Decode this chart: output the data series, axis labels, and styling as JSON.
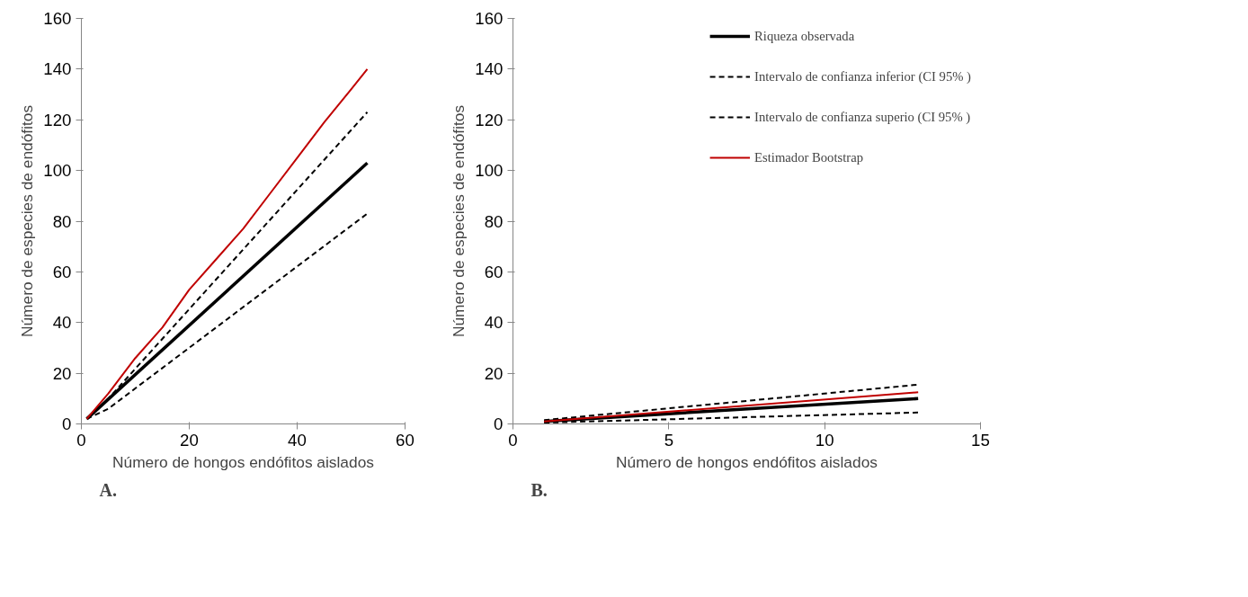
{
  "chart_data": [
    {
      "type": "line",
      "xlabel": "Número de hongos endófitos aislados",
      "ylabel": "Número de especies de endófitos",
      "annotations": [
        "A."
      ],
      "xlim": [
        0,
        60
      ],
      "xticks": [
        0,
        20,
        40,
        60
      ],
      "ylim": [
        0,
        160
      ],
      "yticks": [
        0,
        20,
        40,
        60,
        80,
        100,
        120,
        140,
        160
      ],
      "grid": false,
      "series": [
        {
          "color": "#000000",
          "line_style": "solid",
          "x": [
            1,
            53
          ],
          "values": [
            2,
            103
          ]
        },
        {
          "color": "#000000",
          "line_style": "dashed",
          "x": [
            1,
            5,
            53
          ],
          "values": [
            2,
            6,
            83
          ]
        },
        {
          "color": "#000000",
          "line_style": "dashed",
          "x": [
            1,
            5,
            53
          ],
          "values": [
            2,
            10,
            123
          ]
        },
        {
          "color": "#c00000",
          "line_style": "solid",
          "x": [
            1,
            5,
            10,
            15,
            20,
            25,
            30,
            35,
            40,
            45,
            50,
            53
          ],
          "values": [
            2,
            12,
            26,
            38,
            53,
            65,
            77,
            91,
            105,
            119,
            132,
            140
          ]
        }
      ]
    },
    {
      "type": "line",
      "xlabel": "Número de hongos endófitos aislados",
      "ylabel": "Número de especies de endófitos",
      "annotations": [
        "B."
      ],
      "xlim": [
        0,
        15
      ],
      "xticks": [
        0,
        5,
        10,
        15
      ],
      "ylim": [
        0,
        160
      ],
      "yticks": [
        0,
        20,
        40,
        60,
        80,
        100,
        120,
        140,
        160
      ],
      "grid": false,
      "legend": "top right",
      "series": [
        {
          "name": "Riqueza observada",
          "color": "#000000",
          "line_style": "solid",
          "x": [
            1,
            13
          ],
          "values": [
            1,
            10
          ]
        },
        {
          "name": "Intervalo de confianza inferior (CI 95% )",
          "color": "#000000",
          "line_style": "dashed",
          "x": [
            1,
            13
          ],
          "values": [
            0.5,
            4.5
          ]
        },
        {
          "name": "Intervalo de confianza superio (CI 95% )",
          "color": "#000000",
          "line_style": "dashed",
          "x": [
            1,
            13
          ],
          "values": [
            1.5,
            15.5
          ]
        },
        {
          "name": "Estimador Bootstrap",
          "color": "#c00000",
          "line_style": "solid",
          "x": [
            1,
            13
          ],
          "values": [
            1,
            12.5
          ]
        }
      ]
    }
  ]
}
